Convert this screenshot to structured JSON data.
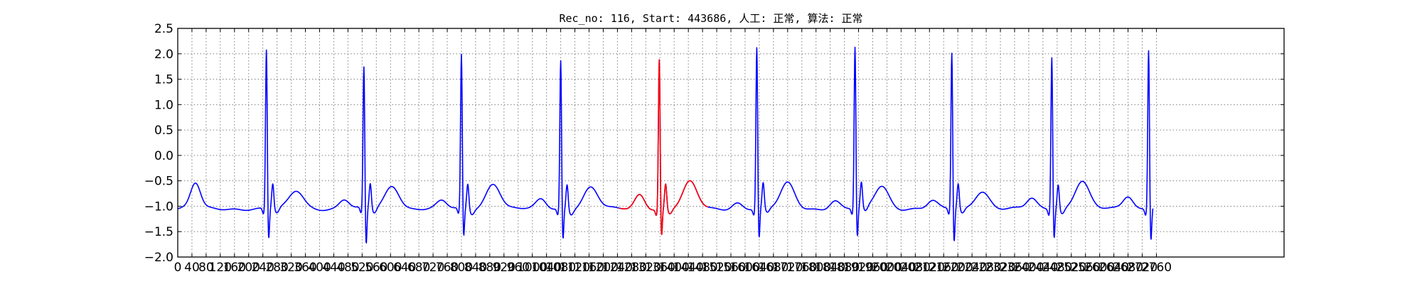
{
  "chart_data": {
    "type": "line",
    "title": "Rec_no: 116, Start: 443686, 人工: 正常, 算法: 正常",
    "xlabel": "",
    "ylabel": "",
    "xlim": [
      0,
      3120
    ],
    "ylim": [
      -2.0,
      2.5
    ],
    "grid": true,
    "x_ticks": [
      0,
      40,
      80,
      120,
      160,
      200,
      240,
      280,
      320,
      360,
      400,
      440,
      480,
      520,
      560,
      600,
      640,
      680,
      720,
      760,
      800,
      840,
      880,
      920,
      960,
      1000,
      1040,
      1080,
      1120,
      1160,
      1200,
      1240,
      1280,
      1320,
      1360,
      1400,
      1440,
      1480,
      1520,
      1560,
      1600,
      1640,
      1680,
      1720,
      1760,
      1800,
      1840,
      1880,
      1920,
      1960,
      2000,
      2040,
      2080,
      2120,
      2160,
      2200,
      2240,
      2280,
      2320,
      2360,
      2400,
      2440,
      2480,
      2520,
      2560,
      2600,
      2640,
      2680,
      2720,
      2760
    ],
    "y_ticks": [
      2.5,
      2.0,
      1.5,
      1.0,
      0.5,
      0.0,
      -0.5,
      -1.0,
      -1.5,
      -2.0
    ],
    "y_tick_labels": [
      "2.5",
      "2.0",
      "1.5",
      "1.0",
      "0.5",
      "0.0",
      "−0.5",
      "−1.0",
      "−1.5",
      "−2.0"
    ],
    "baseline": -1.05,
    "beats": [
      {
        "r_x": 250,
        "r_peak": 2.1,
        "s_min": -1.72,
        "p_x": 50,
        "p_amp": 0.5,
        "t_x": 335,
        "t_amp": 0.35
      },
      {
        "r_x": 525,
        "r_peak": 1.75,
        "s_min": -1.85,
        "p_x": 470,
        "p_amp": 0.18,
        "t_x": 605,
        "t_amp": 0.45
      },
      {
        "r_x": 800,
        "r_peak": 2.0,
        "s_min": -1.68,
        "p_x": 745,
        "p_amp": 0.15,
        "t_x": 890,
        "t_amp": 0.5
      },
      {
        "r_x": 1080,
        "r_peak": 1.9,
        "s_min": -1.72,
        "p_x": 1025,
        "p_amp": 0.18,
        "t_x": 1165,
        "t_amp": 0.42
      },
      {
        "r_x": 1358,
        "r_peak": 1.92,
        "s_min": -1.65,
        "p_x": 1303,
        "p_amp": 0.28,
        "t_x": 1445,
        "t_amp": 0.52
      },
      {
        "r_x": 1633,
        "r_peak": 2.15,
        "s_min": -1.72,
        "p_x": 1578,
        "p_amp": 0.12,
        "t_x": 1720,
        "t_amp": 0.5
      },
      {
        "r_x": 1910,
        "r_peak": 2.15,
        "s_min": -1.7,
        "p_x": 1853,
        "p_amp": 0.15,
        "t_x": 1985,
        "t_amp": 0.45
      },
      {
        "r_x": 2183,
        "r_peak": 2.05,
        "s_min": -1.78,
        "p_x": 2128,
        "p_amp": 0.15,
        "t_x": 2268,
        "t_amp": 0.35
      },
      {
        "r_x": 2465,
        "r_peak": 1.98,
        "s_min": -1.68,
        "p_x": 2408,
        "p_amp": 0.2,
        "t_x": 2550,
        "t_amp": 0.55
      },
      {
        "r_x": 2738,
        "r_peak": 2.12,
        "s_min": -1.72,
        "p_x": 2680,
        "p_amp": 0.25,
        "t_x": 2760,
        "t_amp": 0.0
      }
    ],
    "series": [
      {
        "color": "#0000ff",
        "x_range": [
          0,
          2750
        ]
      },
      {
        "color": "#ff0000",
        "x_range": [
          1245,
          1495
        ]
      }
    ]
  }
}
